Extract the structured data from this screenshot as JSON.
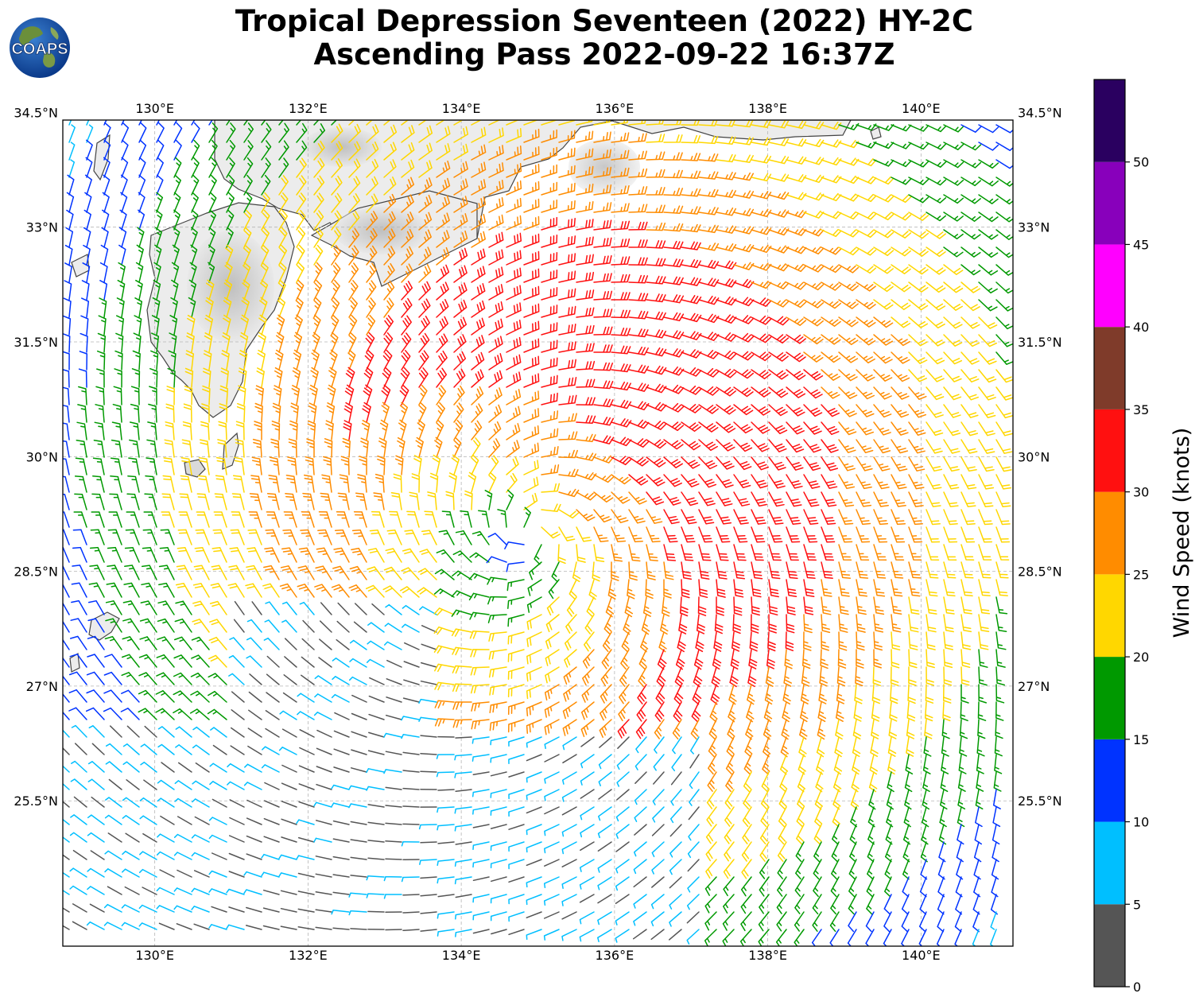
{
  "title": {
    "line1": "Tropical Depression Seventeen (2022) HY-2C",
    "line2": "Ascending Pass 2022-09-22 16:37Z"
  },
  "logo": {
    "text": "COAPS",
    "icon": "globe-logo-icon"
  },
  "map": {
    "lon_range": [
      128.8,
      141.2
    ],
    "lat_range": [
      23.6,
      34.4
    ],
    "lon_ticks": [
      {
        "value": 130,
        "label": "130°E"
      },
      {
        "value": 132,
        "label": "132°E"
      },
      {
        "value": 134,
        "label": "134°E"
      },
      {
        "value": 136,
        "label": "136°E"
      },
      {
        "value": 138,
        "label": "138°E"
      },
      {
        "value": 140,
        "label": "140°E"
      }
    ],
    "lat_ticks": [
      {
        "value": 34.5,
        "label": "34.5°N"
      },
      {
        "value": 33,
        "label": "33°N"
      },
      {
        "value": 31.5,
        "label": "31.5°N"
      },
      {
        "value": 30,
        "label": "30°N"
      },
      {
        "value": 28.5,
        "label": "28.5°N"
      },
      {
        "value": 27,
        "label": "27°N"
      },
      {
        "value": 25.5,
        "label": "25.5°N"
      }
    ],
    "gridlines": true,
    "storm_center": {
      "lon": 134.9,
      "lat": 29.0
    }
  },
  "colorbar": {
    "label": "Wind Speed (knots)",
    "ticks": [
      "0",
      "5",
      "10",
      "15",
      "20",
      "25",
      "30",
      "35",
      "40",
      "45",
      "50"
    ],
    "bins": [
      {
        "min": 0,
        "max": 5,
        "color": "#555555"
      },
      {
        "min": 5,
        "max": 10,
        "color": "#00bfff"
      },
      {
        "min": 10,
        "max": 15,
        "color": "#0033ff"
      },
      {
        "min": 15,
        "max": 20,
        "color": "#009900"
      },
      {
        "min": 20,
        "max": 25,
        "color": "#ffd700"
      },
      {
        "min": 25,
        "max": 30,
        "color": "#ff8c00"
      },
      {
        "min": 30,
        "max": 35,
        "color": "#ff1010"
      },
      {
        "min": 35,
        "max": 40,
        "color": "#7f3b2a"
      },
      {
        "min": 40,
        "max": 45,
        "color": "#ff00ff"
      },
      {
        "min": 45,
        "max": 50,
        "color": "#8800bb"
      },
      {
        "min": 50,
        "max": 55,
        "color": "#2a0060"
      }
    ]
  }
}
